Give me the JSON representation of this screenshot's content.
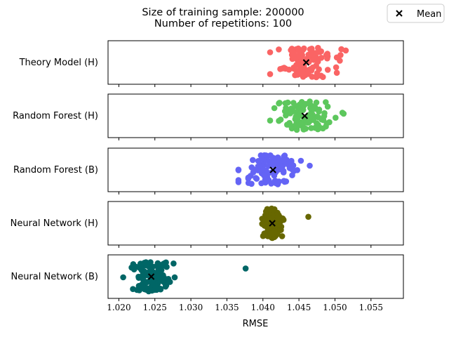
{
  "chart_data": {
    "type": "scatter",
    "title_lines": [
      "Size of training sample: 200000",
      "Number of repetitions: 100"
    ],
    "xlabel": "RMSE",
    "xlim": [
      1.0185,
      1.0595
    ],
    "xticks": [
      1.02,
      1.025,
      1.03,
      1.035,
      1.04,
      1.045,
      1.05,
      1.055
    ],
    "xtick_labels": [
      "1.020",
      "1.025",
      "1.030",
      "1.035",
      "1.040",
      "1.045",
      "1.050",
      "1.055"
    ],
    "legend": {
      "label": "Mean",
      "marker": "x",
      "placement": "top-right"
    },
    "series": [
      {
        "name": "Theory Model (H)",
        "color": "#fa6464",
        "mean": 1.046,
        "spread": 0.0019,
        "xmin": 1.041,
        "xmax": 1.0515,
        "n": 100
      },
      {
        "name": "Random Forest (H)",
        "color": "#5dc75d",
        "mean": 1.0458,
        "spread": 0.0019,
        "xmin": 1.041,
        "xmax": 1.0512,
        "n": 100
      },
      {
        "name": "Random Forest (B)",
        "color": "#6464f5",
        "mean": 1.0414,
        "spread": 0.002,
        "xmin": 1.0366,
        "xmax": 1.0465,
        "n": 100
      },
      {
        "name": "Neural Network (H)",
        "color": "#676700",
        "mean": 1.0413,
        "spread": 0.0006,
        "xmin": 1.0399,
        "xmax": 1.0463,
        "n": 100
      },
      {
        "name": "Neural Network (B)",
        "color": "#006666",
        "mean": 1.0245,
        "spread": 0.0013,
        "xmin": 1.0206,
        "xmax": 1.0376,
        "n": 100
      }
    ]
  }
}
